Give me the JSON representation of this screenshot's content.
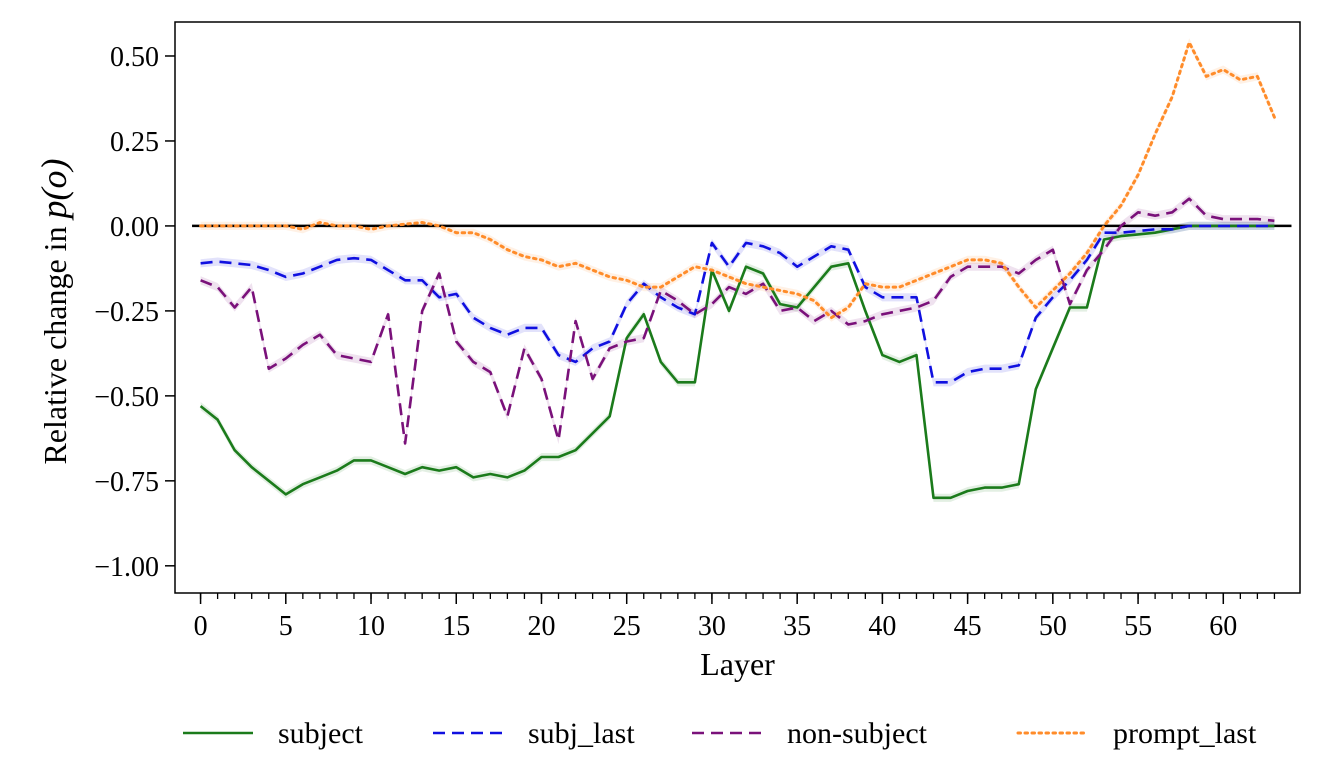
{
  "chart_data": {
    "type": "line",
    "xlabel": "Layer",
    "ylabel_prefix": "Relative change in ",
    "ylabel_math": "p(o)",
    "xlim": [
      -1.5,
      64.5
    ],
    "ylim": [
      -1.08,
      0.6
    ],
    "xticks": [
      0,
      5,
      10,
      15,
      20,
      25,
      30,
      35,
      40,
      45,
      50,
      55,
      60
    ],
    "xtick_labels": [
      "0",
      "5",
      "10",
      "15",
      "20",
      "25",
      "30",
      "35",
      "40",
      "45",
      "50",
      "55",
      "60"
    ],
    "yticks": [
      0.5,
      0.25,
      0.0,
      -0.25,
      -0.5,
      -0.75,
      -1.0
    ],
    "ytick_labels": [
      "0.50",
      "0.25",
      "0.00",
      "−0.25",
      "−0.50",
      "−0.75",
      "−1.00"
    ],
    "minor_x_step": 1,
    "reference_line": {
      "y": 0.0,
      "x": [
        -0.5,
        64
      ],
      "color": "#000000"
    },
    "legend_position": "bottom",
    "series": [
      {
        "name": "subject",
        "color": "#1b7b1b",
        "dash": "solid",
        "values": [
          -0.53,
          -0.57,
          -0.66,
          -0.71,
          -0.75,
          -0.79,
          -0.76,
          -0.74,
          -0.72,
          -0.69,
          -0.69,
          -0.71,
          -0.73,
          -0.71,
          -0.72,
          -0.71,
          -0.74,
          -0.73,
          -0.74,
          -0.72,
          -0.68,
          -0.68,
          -0.66,
          -0.61,
          -0.56,
          -0.33,
          -0.26,
          -0.4,
          -0.46,
          -0.46,
          -0.13,
          -0.25,
          -0.12,
          -0.14,
          -0.23,
          -0.24,
          -0.18,
          -0.12,
          -0.11,
          -0.25,
          -0.38,
          -0.4,
          -0.38,
          -0.8,
          -0.8,
          -0.78,
          -0.77,
          -0.77,
          -0.76,
          -0.48,
          -0.36,
          -0.24,
          -0.24,
          -0.04,
          -0.03,
          -0.025,
          -0.02,
          -0.01,
          0.0,
          0.0,
          0.0,
          0.0,
          0.0,
          0.0
        ]
      },
      {
        "name": "subj_last",
        "color": "#1010e0",
        "dash": "dashed",
        "values": [
          -0.11,
          -0.105,
          -0.11,
          -0.115,
          -0.13,
          -0.15,
          -0.14,
          -0.12,
          -0.1,
          -0.095,
          -0.1,
          -0.13,
          -0.16,
          -0.16,
          -0.21,
          -0.2,
          -0.27,
          -0.3,
          -0.32,
          -0.3,
          -0.3,
          -0.38,
          -0.4,
          -0.36,
          -0.34,
          -0.23,
          -0.17,
          -0.21,
          -0.24,
          -0.26,
          -0.05,
          -0.12,
          -0.05,
          -0.06,
          -0.08,
          -0.12,
          -0.09,
          -0.06,
          -0.07,
          -0.18,
          -0.21,
          -0.21,
          -0.21,
          -0.46,
          -0.46,
          -0.43,
          -0.42,
          -0.42,
          -0.41,
          -0.27,
          -0.21,
          -0.16,
          -0.1,
          -0.02,
          -0.02,
          -0.015,
          -0.01,
          -0.01,
          0.0,
          0.0,
          0.0,
          0.0,
          0.0,
          0.0
        ]
      },
      {
        "name": "non-subject",
        "color": "#7a117a",
        "dash": "dashed",
        "values": [
          -0.16,
          -0.18,
          -0.24,
          -0.18,
          -0.42,
          -0.39,
          -0.35,
          -0.32,
          -0.38,
          -0.39,
          -0.4,
          -0.26,
          -0.64,
          -0.25,
          -0.14,
          -0.34,
          -0.4,
          -0.43,
          -0.56,
          -0.36,
          -0.45,
          -0.63,
          -0.28,
          -0.45,
          -0.36,
          -0.34,
          -0.33,
          -0.19,
          -0.22,
          -0.26,
          -0.23,
          -0.18,
          -0.2,
          -0.17,
          -0.25,
          -0.24,
          -0.28,
          -0.25,
          -0.29,
          -0.28,
          -0.26,
          -0.25,
          -0.24,
          -0.22,
          -0.15,
          -0.12,
          -0.12,
          -0.12,
          -0.14,
          -0.1,
          -0.07,
          -0.23,
          -0.13,
          -0.07,
          0.0,
          0.04,
          0.03,
          0.04,
          0.08,
          0.03,
          0.02,
          0.02,
          0.02,
          0.015
        ]
      },
      {
        "name": "prompt_last",
        "color": "#ff8c2a",
        "dash": "dotted",
        "values": [
          0.0,
          0.0,
          0.0,
          0.0,
          0.0,
          0.0,
          -0.01,
          0.01,
          0.0,
          0.0,
          -0.01,
          0.0,
          0.005,
          0.01,
          0.0,
          -0.02,
          -0.02,
          -0.04,
          -0.07,
          -0.09,
          -0.1,
          -0.12,
          -0.11,
          -0.13,
          -0.15,
          -0.16,
          -0.18,
          -0.18,
          -0.15,
          -0.12,
          -0.13,
          -0.15,
          -0.17,
          -0.18,
          -0.19,
          -0.2,
          -0.22,
          -0.27,
          -0.24,
          -0.17,
          -0.18,
          -0.18,
          -0.16,
          -0.14,
          -0.12,
          -0.1,
          -0.1,
          -0.11,
          -0.18,
          -0.24,
          -0.19,
          -0.14,
          -0.08,
          0.0,
          0.06,
          0.15,
          0.27,
          0.38,
          0.54,
          0.44,
          0.46,
          0.43,
          0.44,
          0.32
        ]
      }
    ]
  }
}
